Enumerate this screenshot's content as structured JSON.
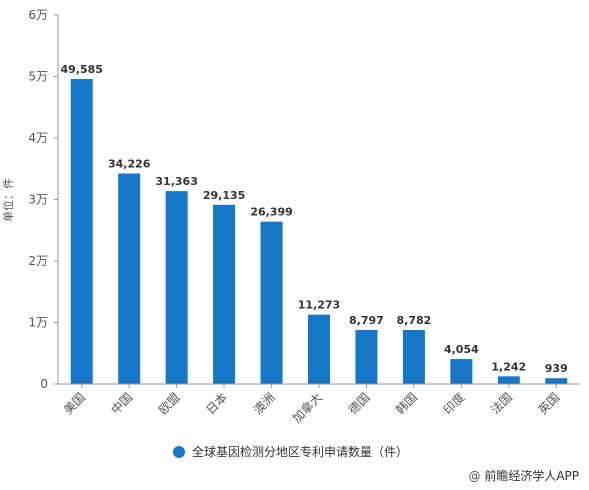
{
  "chart_data": {
    "type": "bar",
    "categories": [
      "美国",
      "中国",
      "欧盟",
      "日本",
      "澳洲",
      "加拿大",
      "德国",
      "韩国",
      "印度",
      "法国",
      "英国"
    ],
    "series": [
      {
        "name": "全球基因检测分地区专利申请数量（件）",
        "values": [
          49585,
          34226,
          31363,
          29135,
          26399,
          11273,
          8797,
          8782,
          4054,
          1242,
          939
        ]
      }
    ],
    "data_labels": [
      "49,585",
      "34,226",
      "31,363",
      "29,135",
      "26,399",
      "11,273",
      "8,797",
      "8,782",
      "4,054",
      "1,242",
      "939"
    ],
    "ylabel": "单位：件",
    "ylim": [
      0,
      60000
    ],
    "yticks": [
      0,
      10000,
      20000,
      30000,
      40000,
      50000,
      60000
    ],
    "ytick_labels": [
      "0",
      "1万",
      "2万",
      "3万",
      "4万",
      "5万",
      "6万"
    ],
    "grid": false,
    "legend": "bottom",
    "bar_color": "#1677c9"
  },
  "credit": {
    "at": "@",
    "text": "前瞻经济学人APP"
  }
}
